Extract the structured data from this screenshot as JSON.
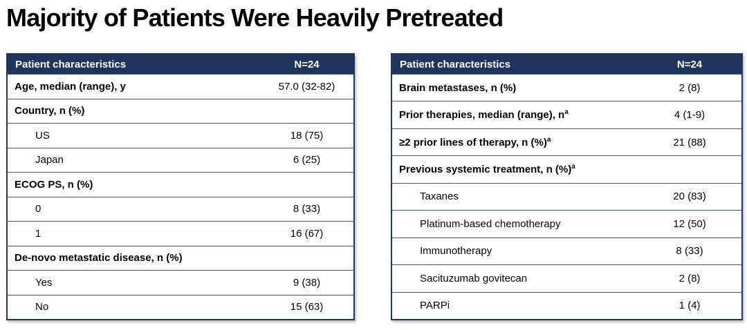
{
  "slide": {
    "title": "Majority of Patients Were Heavily Pretreated"
  },
  "colors": {
    "header_bg": "#20355E",
    "header_text": "#FFFFFF",
    "table_border": "#20355E",
    "row_divider": "#41557C",
    "body_text": "#000000"
  },
  "tables": [
    {
      "header": {
        "label": "Patient characteristics",
        "value": "N=24"
      },
      "rows": [
        {
          "label": "Age, median (range), y",
          "value": "57.0 (32-82)"
        },
        {
          "label": "Country, n (%)",
          "value": ""
        },
        {
          "label": "US",
          "value": "18 (75)"
        },
        {
          "label": "Japan",
          "value": "6 (25)"
        },
        {
          "label": "ECOG PS, n (%)",
          "value": ""
        },
        {
          "label": "0",
          "value": "8 (33)"
        },
        {
          "label": "1",
          "value": "16 (67)"
        },
        {
          "label": "De-novo metastatic disease, n (%)",
          "value": ""
        },
        {
          "label": "Yes",
          "value": "9 (38)"
        },
        {
          "label": "No",
          "value": "15 (63)"
        }
      ]
    },
    {
      "header": {
        "label": "Patient characteristics",
        "value": "N=24"
      },
      "rows": [
        {
          "label": "Brain metastases, n (%)",
          "value": "2 (8)"
        },
        {
          "label": "Prior therapies, median (range), n",
          "sup": "a",
          "value": "4 (1-9)"
        },
        {
          "label": "≥2 prior lines of therapy, n (%)",
          "sup": "a",
          "value": "21 (88)"
        },
        {
          "label": "Previous systemic treatment, n (%)",
          "sup": "a",
          "value": ""
        },
        {
          "label": "Taxanes",
          "value": "20 (83)"
        },
        {
          "label": "Platinum-based chemotherapy",
          "value": "12 (50)"
        },
        {
          "label": "Immunotherapy",
          "value": "8 (33)"
        },
        {
          "label": "Sacituzumab govitecan",
          "value": "2 (8)"
        },
        {
          "label": "PARPi",
          "value": "1 (4)"
        }
      ]
    }
  ]
}
